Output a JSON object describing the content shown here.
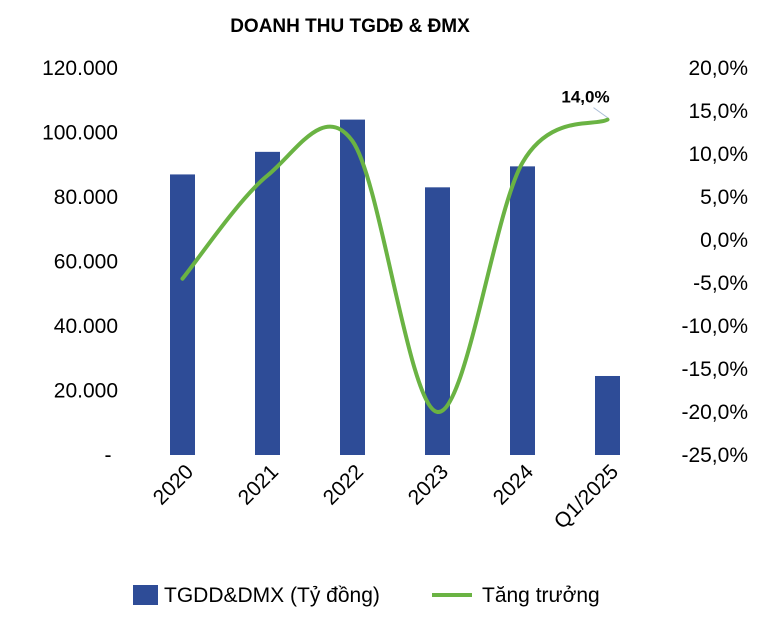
{
  "chart_data": {
    "type": "bar+line",
    "title": "DOANH THU TGDĐ & ĐMX",
    "categories": [
      "2020",
      "2021",
      "2022",
      "2023",
      "2024",
      "Q1/2025"
    ],
    "series": [
      {
        "name": "TGDD&DMX (Tỷ đồng)",
        "type": "bar",
        "axis": "left",
        "color": "#2e4c97",
        "values": [
          87000,
          94000,
          104000,
          83000,
          89500,
          24500
        ]
      },
      {
        "name": "Tăng trưởng",
        "type": "line",
        "axis": "right",
        "color": "#6ab343",
        "values": [
          -4.5,
          7.5,
          11.5,
          -20.0,
          9.0,
          14.0
        ]
      }
    ],
    "y_left": {
      "range": [
        0,
        120000
      ],
      "ticks": [
        0,
        20000,
        40000,
        60000,
        80000,
        100000,
        120000
      ],
      "tick_labels": [
        "-",
        "20.000",
        "40.000",
        "60.000",
        "80.000",
        "100.000",
        "120.000"
      ]
    },
    "y_right": {
      "range": [
        -25,
        20
      ],
      "ticks": [
        -25,
        -20,
        -15,
        -10,
        -5,
        0,
        5,
        10,
        15,
        20
      ],
      "tick_labels": [
        "-25,0%",
        "-20,0%",
        "-15,0%",
        "-10,0%",
        "-5,0%",
        "0,0%",
        "5,0%",
        "10,0%",
        "15,0%",
        "20,0%"
      ]
    },
    "annotations": [
      {
        "series_index": 1,
        "point_index": 5,
        "text": "14,0%"
      }
    ],
    "grid": false,
    "legend_position": "bottom"
  }
}
